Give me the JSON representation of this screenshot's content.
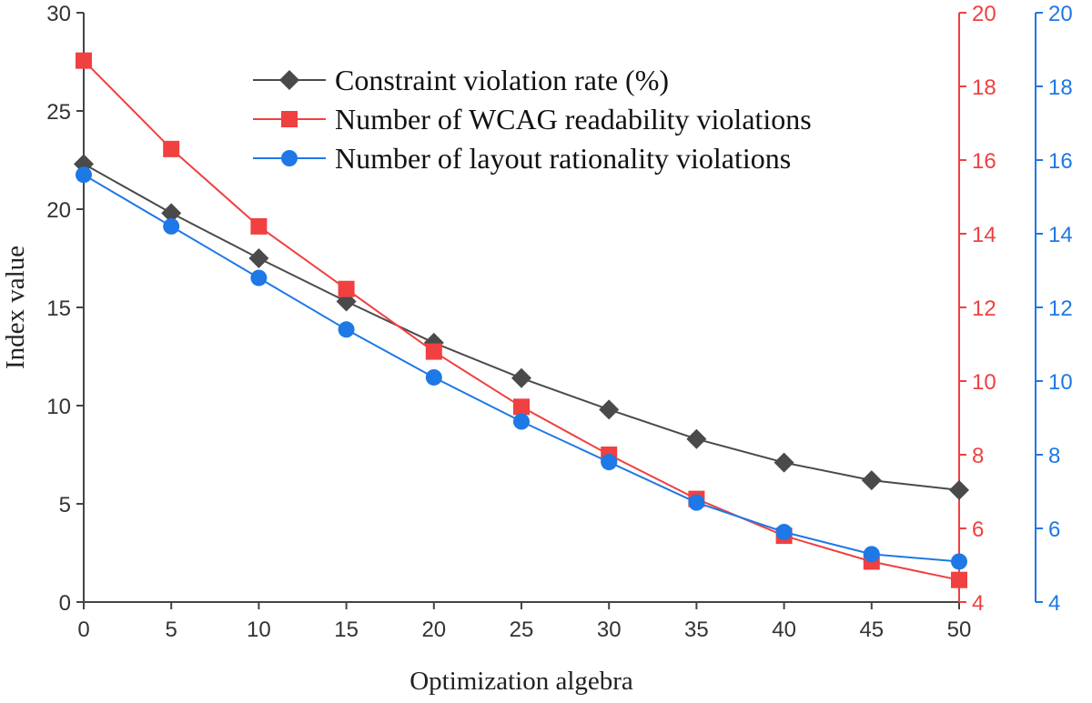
{
  "chart_data": {
    "type": "line",
    "x": [
      0,
      5,
      10,
      15,
      20,
      25,
      30,
      35,
      40,
      45,
      50
    ],
    "xlim": [
      0,
      50
    ],
    "x_ticks": [
      "0",
      "5",
      "10",
      "15",
      "20",
      "25",
      "30",
      "35",
      "40",
      "45",
      "50"
    ],
    "xlabel": "Optimization algebra",
    "ylabel": "Index value",
    "ylim_left": [
      0,
      30
    ],
    "left_ticks": [
      "0",
      "5",
      "10",
      "15",
      "20",
      "25",
      "30"
    ],
    "ylim_right_red": [
      4,
      20
    ],
    "red_ticks": [
      "4",
      "6",
      "8",
      "10",
      "12",
      "14",
      "16",
      "18",
      "20"
    ],
    "ylim_right_blue": [
      4,
      20
    ],
    "blue_ticks": [
      "4",
      "6",
      "8",
      "10",
      "12",
      "14",
      "16",
      "18",
      "20"
    ],
    "legend_position": "top-center",
    "series": [
      {
        "name": "Constraint violation rate (%)",
        "axis": "left",
        "marker": "diamond",
        "color": "#4a4a4a",
        "values": [
          22.3,
          19.8,
          17.5,
          15.3,
          13.2,
          11.4,
          9.8,
          8.3,
          7.1,
          6.2,
          5.7
        ]
      },
      {
        "name": "Number of WCAG readability violations",
        "axis": "right-red",
        "marker": "square",
        "color": "#f04040",
        "values": [
          18.7,
          16.3,
          14.2,
          12.5,
          10.8,
          9.3,
          8.0,
          6.8,
          5.8,
          5.1,
          4.6
        ]
      },
      {
        "name": "Number of layout rationality violations",
        "axis": "right-blue",
        "marker": "circle",
        "color": "#1e78e6",
        "values": [
          15.6,
          14.2,
          12.8,
          11.4,
          10.1,
          8.9,
          7.8,
          6.7,
          5.9,
          5.3,
          5.1
        ]
      }
    ],
    "colors": {
      "left_axis": "#444444",
      "red_axis": "#f04040",
      "blue_axis": "#1e78e6"
    }
  }
}
